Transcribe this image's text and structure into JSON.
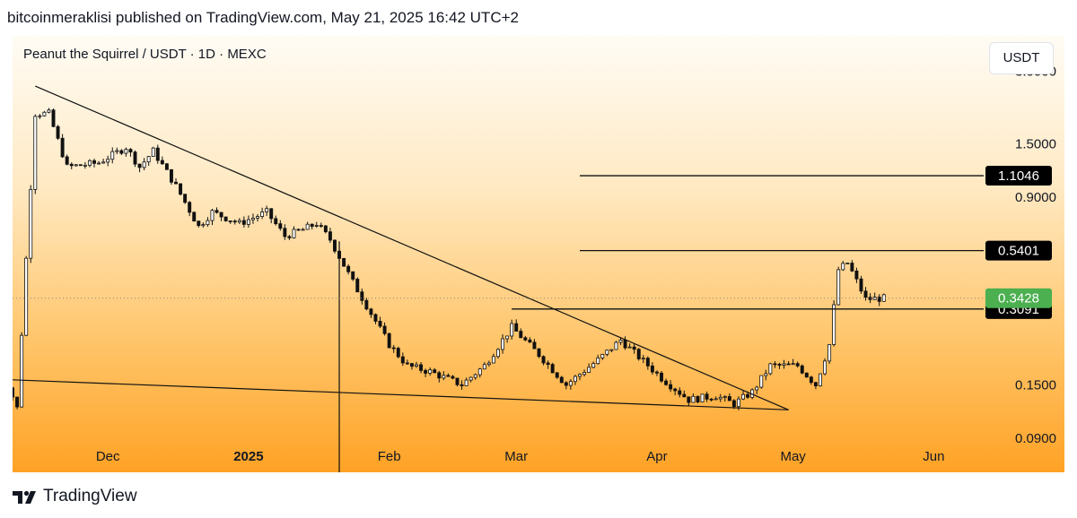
{
  "header": {
    "publisher_line": "bitcoinmeraklisi published on TradingView.com, May 21, 2025 16:42 UTC+2"
  },
  "chart": {
    "title": "Peanut the Squirrel / USDT · 1D · MEXC",
    "currency_button": "USDT"
  },
  "footer": {
    "brand": "TradingView",
    "logo_icon": "tradingview-logo-icon"
  },
  "colors": {
    "up_candle": "#ffffff",
    "down_candle": "#111111",
    "last_price_badge": "#4caf50",
    "level_badge": "#000000",
    "gradient_top": "#fffcf5",
    "gradient_bottom": "#ffa225"
  },
  "chart_data": {
    "type": "candlestick",
    "title": "Peanut the Squirrel / USDT · 1D · MEXC",
    "scale": "log",
    "ylim": [
      0.065,
      4.2
    ],
    "y_ticks": [
      "3.0000",
      "1.5000",
      "0.9000",
      "0.1500",
      "0.0900"
    ],
    "x_ticks": [
      "Dec",
      "2025",
      "Feb",
      "Mar",
      "Apr",
      "May",
      "Jun"
    ],
    "x_tick_dates": [
      "2024-12-01",
      "2025-01-01",
      "2025-02-01",
      "2025-03-01",
      "2025-04-01",
      "2025-05-01",
      "2025-06-01"
    ],
    "date_range": [
      "2024-11-10",
      "2025-06-12"
    ],
    "grid": false,
    "last_price": {
      "value": 0.3428,
      "label": "0.3428"
    },
    "horizontal_levels": [
      {
        "value": 1.1046,
        "label": "1.1046",
        "start_date": "2025-03-15"
      },
      {
        "value": 0.5401,
        "label": "0.5401",
        "start_date": "2025-03-15"
      },
      {
        "value": 0.3091,
        "label": "0.3091",
        "start_date": "2025-02-28"
      }
    ],
    "trendlines": [
      {
        "from": {
          "date": "2024-11-15",
          "value": 2.6
        },
        "to": {
          "date": "2025-04-30",
          "value": 0.118
        }
      },
      {
        "from": {
          "date": "2024-11-07",
          "value": 0.158
        },
        "to": {
          "date": "2025-04-30",
          "value": 0.118
        }
      }
    ],
    "vertical_lines": [
      {
        "date": "2025-01-21",
        "from_value": 0.59
      }
    ],
    "price_path": {
      "start_date": "2024-11-07",
      "end_date": "2025-05-21",
      "anchors": [
        [
          "2024-11-07",
          0.11
        ],
        [
          "2024-11-09",
          0.15
        ],
        [
          "2024-11-11",
          0.12
        ],
        [
          "2024-11-13",
          0.5
        ],
        [
          "2024-11-15",
          2.0
        ],
        [
          "2024-11-18",
          2.0
        ],
        [
          "2024-11-22",
          1.2
        ],
        [
          "2024-11-29",
          1.25
        ],
        [
          "2024-12-05",
          1.45
        ],
        [
          "2024-12-08",
          1.2
        ],
        [
          "2024-12-11",
          1.4
        ],
        [
          "2024-12-16",
          1.0
        ],
        [
          "2024-12-21",
          0.68
        ],
        [
          "2024-12-24",
          0.78
        ],
        [
          "2024-12-30",
          0.7
        ],
        [
          "2025-01-05",
          0.78
        ],
        [
          "2025-01-09",
          0.62
        ],
        [
          "2025-01-13",
          0.66
        ],
        [
          "2025-01-16",
          0.7
        ],
        [
          "2025-01-19",
          0.6
        ],
        [
          "2025-01-24",
          0.4
        ],
        [
          "2025-02-01",
          0.22
        ],
        [
          "2025-02-05",
          0.18
        ],
        [
          "2025-02-10",
          0.17
        ],
        [
          "2025-02-17",
          0.15
        ],
        [
          "2025-02-22",
          0.18
        ],
        [
          "2025-02-28",
          0.26
        ],
        [
          "2025-03-06",
          0.2
        ],
        [
          "2025-03-12",
          0.15
        ],
        [
          "2025-03-19",
          0.19
        ],
        [
          "2025-03-24",
          0.23
        ],
        [
          "2025-04-02",
          0.16
        ],
        [
          "2025-04-08",
          0.13
        ],
        [
          "2025-04-14",
          0.135
        ],
        [
          "2025-04-18",
          0.125
        ],
        [
          "2025-04-22",
          0.14
        ],
        [
          "2025-04-26",
          0.18
        ],
        [
          "2025-05-02",
          0.18
        ],
        [
          "2025-05-06",
          0.15
        ],
        [
          "2025-05-09",
          0.22
        ],
        [
          "2025-05-11",
          0.45
        ],
        [
          "2025-05-13",
          0.48
        ],
        [
          "2025-05-17",
          0.34
        ],
        [
          "2025-05-21",
          0.3428
        ]
      ]
    }
  }
}
